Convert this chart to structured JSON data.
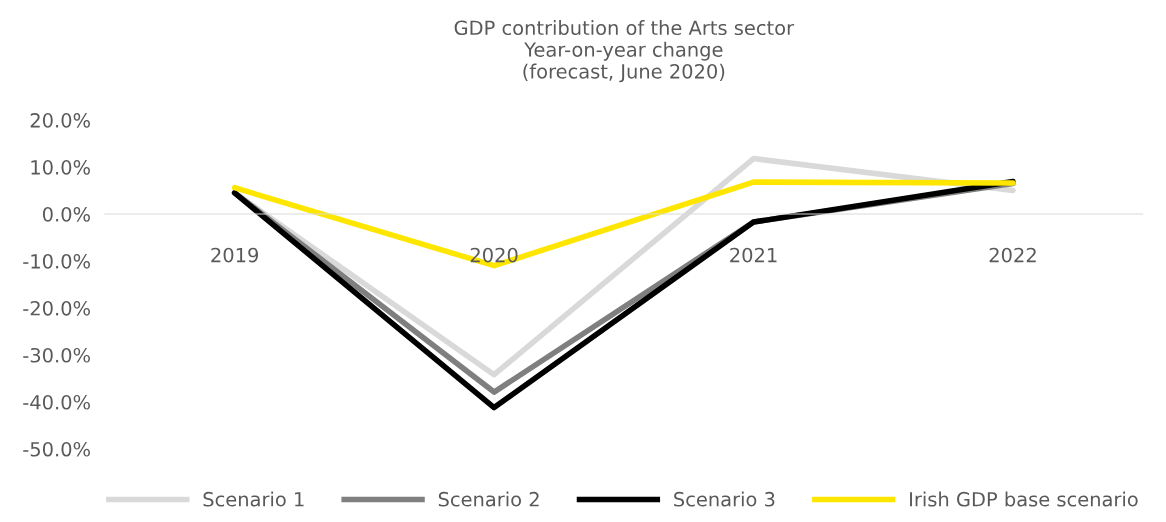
{
  "chart_data": {
    "type": "line",
    "title": "GDP contribution of the Arts sector\nYear-on-year change\n(forecast, June 2020)",
    "categories": [
      "2019",
      "2020",
      "2021",
      "2022"
    ],
    "series": [
      {
        "name": "Scenario 1",
        "color": "#d9d9d9",
        "values": [
          4.5,
          -34.2,
          11.8,
          5.0
        ]
      },
      {
        "name": "Scenario 2",
        "color": "#7f7f7f",
        "values": [
          4.5,
          -37.9,
          -1.7,
          6.5
        ]
      },
      {
        "name": "Scenario 3",
        "color": "#000000",
        "values": [
          4.5,
          -41.2,
          -1.7,
          6.9
        ]
      },
      {
        "name": "Irish GDP base scenario",
        "color": "#ffe600",
        "values": [
          5.6,
          -11.0,
          6.8,
          6.6
        ]
      }
    ],
    "ylim": [
      -50,
      20
    ],
    "yticks": [
      {
        "value": 20,
        "label": "20.0%"
      },
      {
        "value": 10,
        "label": "10.0%"
      },
      {
        "value": 0,
        "label": "0.0%"
      },
      {
        "value": -10,
        "label": "-10.0%"
      },
      {
        "value": -20,
        "label": "-20.0%"
      },
      {
        "value": -30,
        "label": "-30.0%"
      },
      {
        "value": -40,
        "label": "-40.0%"
      },
      {
        "value": -50,
        "label": "-50.0%"
      }
    ],
    "grid": false,
    "legend": "bottom",
    "marker": "none",
    "line_style": "solid"
  }
}
